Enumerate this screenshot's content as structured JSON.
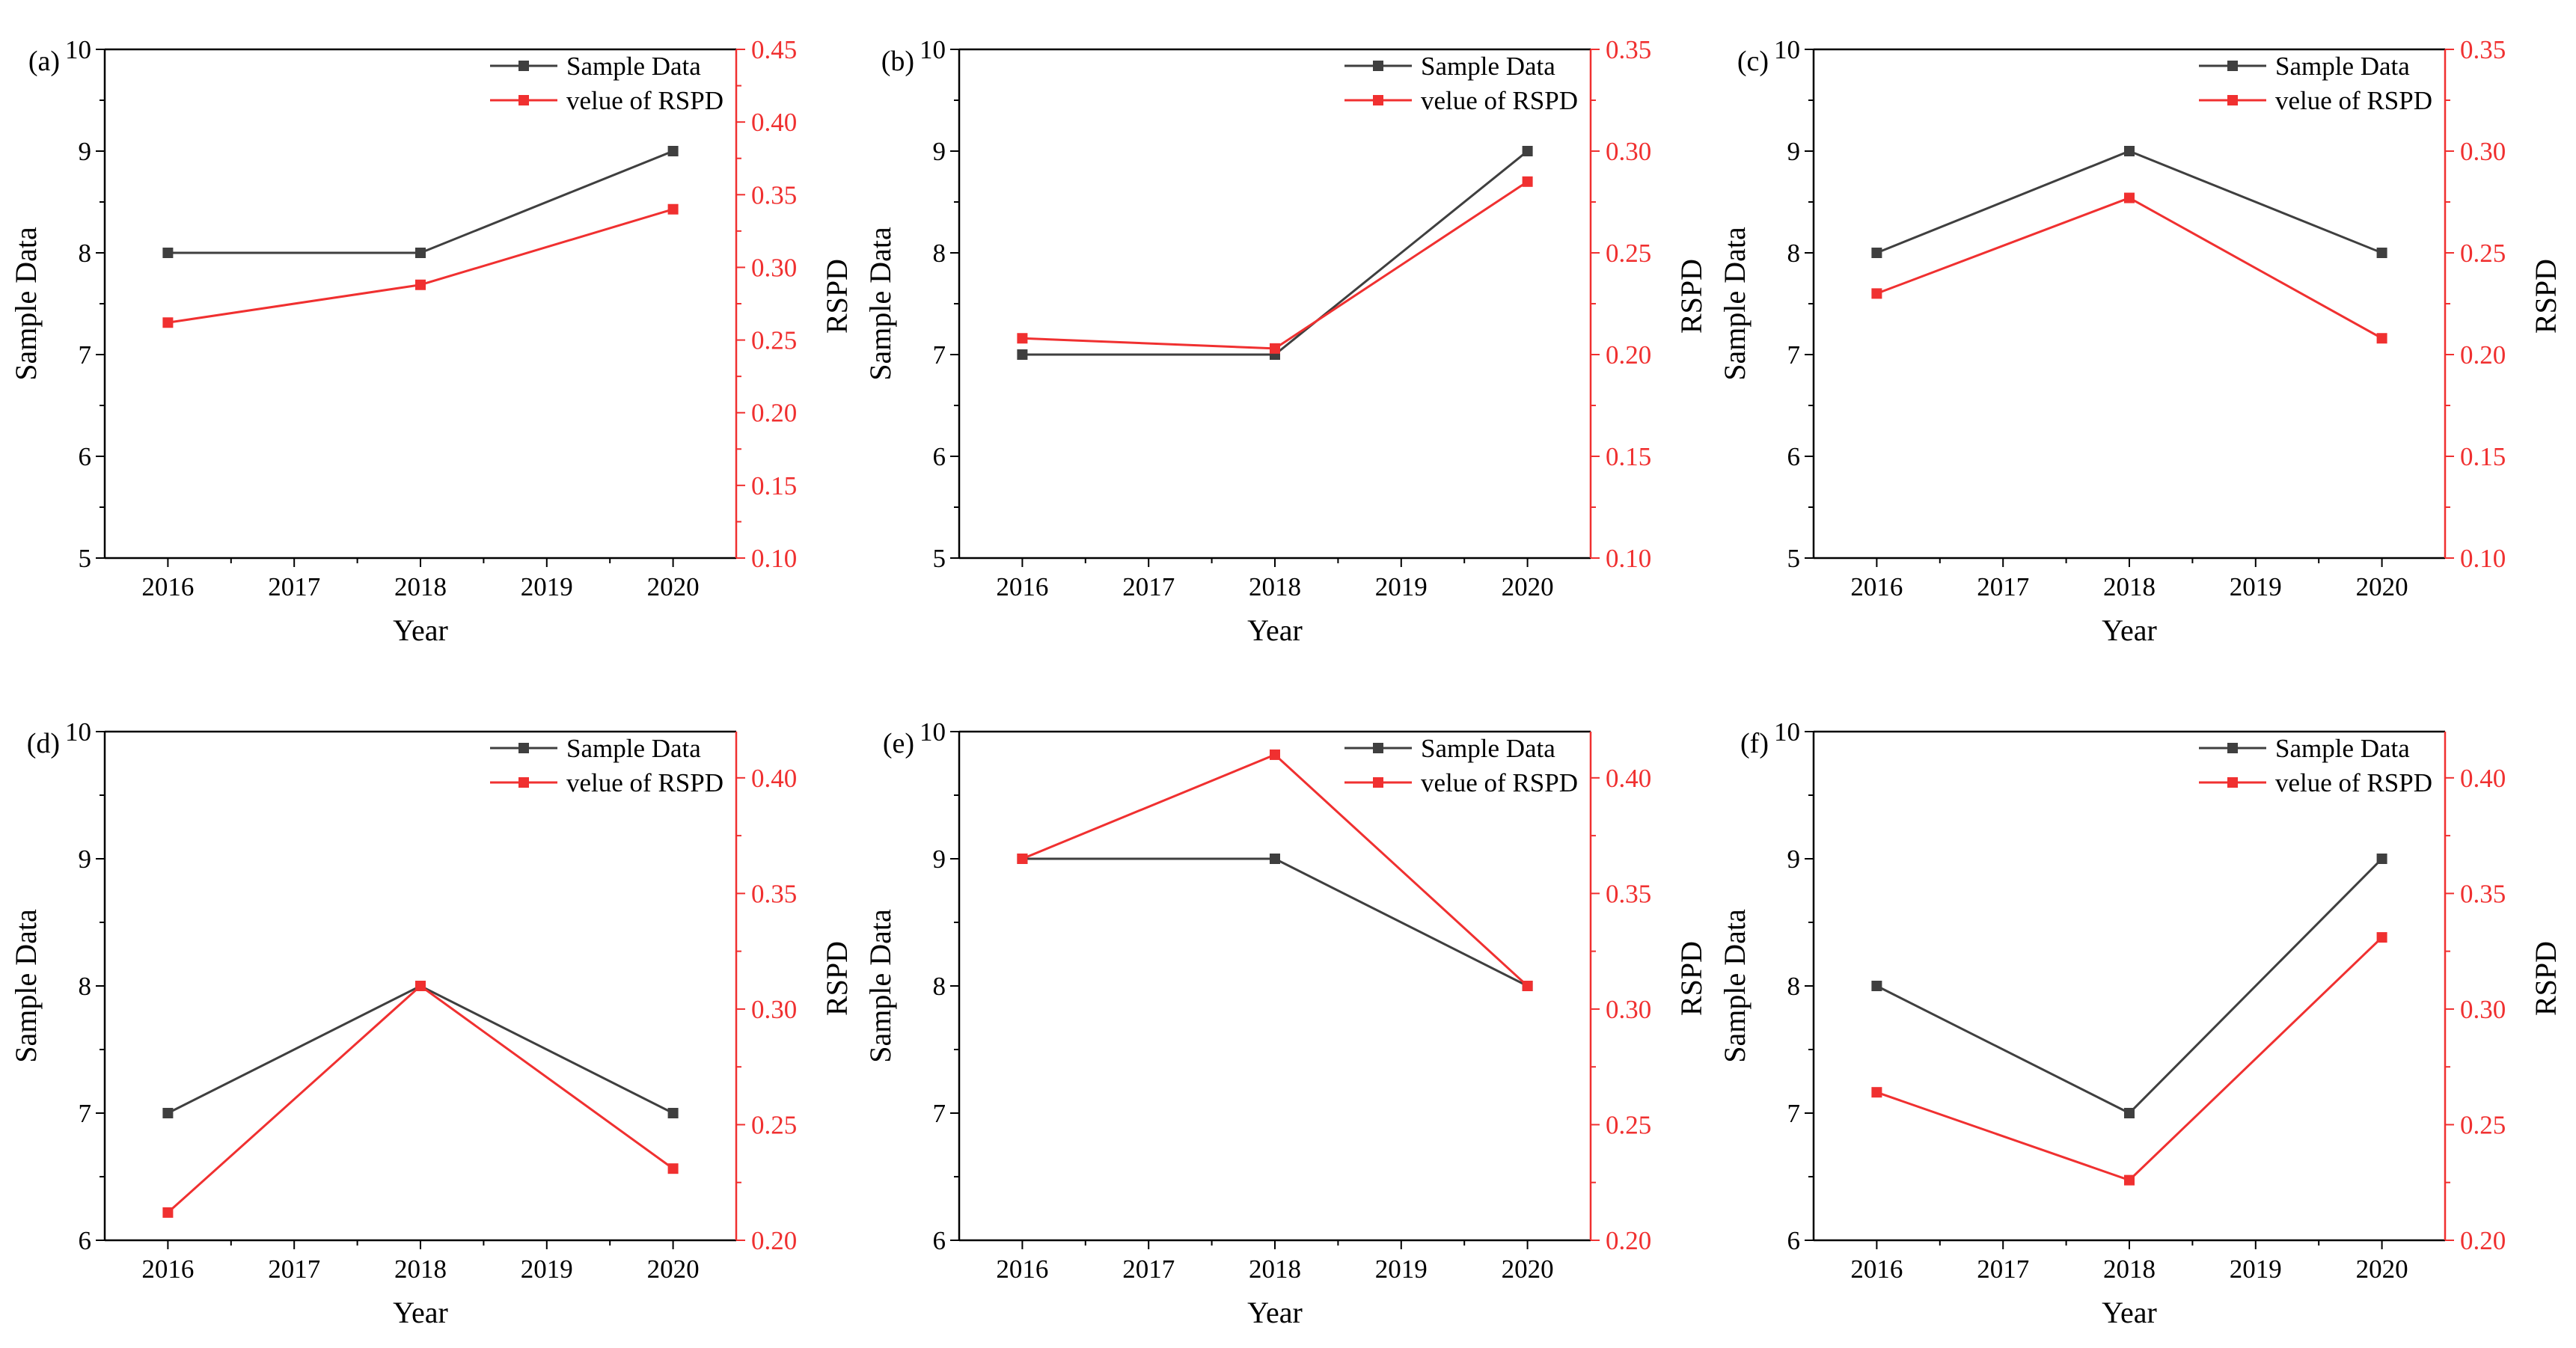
{
  "figure": {
    "panel_count": 6
  },
  "chart_data": [
    {
      "type": "line",
      "panel_label": "(a)",
      "xlabel": "Year",
      "ylabel": "Sample Data",
      "y2label": "RSPD",
      "x_ticks": [
        "2016",
        "2017",
        "2018",
        "2019",
        "2020"
      ],
      "xlim": [
        2015.5,
        2020.5
      ],
      "ylim": [
        5,
        10
      ],
      "y_ticks": [
        "5",
        "6",
        "7",
        "8",
        "9",
        "10"
      ],
      "y2lim": [
        0.1,
        0.45
      ],
      "y2_ticks": [
        "0.10",
        "0.15",
        "0.20",
        "0.25",
        "0.30",
        "0.35",
        "0.40",
        "0.45"
      ],
      "series": [
        {
          "name": "Sample Data",
          "axis": "left",
          "color": "#3f3f3f",
          "x": [
            2016,
            2018,
            2020
          ],
          "values": [
            8,
            8,
            9
          ]
        },
        {
          "name": "velue of RSPD",
          "axis": "right",
          "color": "#f03030",
          "x": [
            2016,
            2018,
            2020
          ],
          "values": [
            0.262,
            0.288,
            0.34
          ]
        }
      ],
      "legend_position": "top-right"
    },
    {
      "type": "line",
      "panel_label": "(b)",
      "xlabel": "Year",
      "ylabel": "Sample Data",
      "y2label": "RSPD",
      "x_ticks": [
        "2016",
        "2017",
        "2018",
        "2019",
        "2020"
      ],
      "xlim": [
        2015.5,
        2020.5
      ],
      "ylim": [
        5,
        10
      ],
      "y_ticks": [
        "5",
        "6",
        "7",
        "8",
        "9",
        "10"
      ],
      "y2lim": [
        0.1,
        0.35
      ],
      "y2_ticks": [
        "0.10",
        "0.15",
        "0.20",
        "0.25",
        "0.30",
        "0.35"
      ],
      "series": [
        {
          "name": "Sample Data",
          "axis": "left",
          "color": "#3f3f3f",
          "x": [
            2016,
            2018,
            2020
          ],
          "values": [
            7,
            7,
            9
          ]
        },
        {
          "name": "velue of RSPD",
          "axis": "right",
          "color": "#f03030",
          "x": [
            2016,
            2018,
            2020
          ],
          "values": [
            0.208,
            0.203,
            0.285
          ]
        }
      ],
      "legend_position": "top-right"
    },
    {
      "type": "line",
      "panel_label": "(c)",
      "xlabel": "Year",
      "ylabel": "Sample Data",
      "y2label": "RSPD",
      "x_ticks": [
        "2016",
        "2017",
        "2018",
        "2019",
        "2020"
      ],
      "xlim": [
        2015.5,
        2020.5
      ],
      "ylim": [
        5,
        10
      ],
      "y_ticks": [
        "5",
        "6",
        "7",
        "8",
        "9",
        "10"
      ],
      "y2lim": [
        0.1,
        0.35
      ],
      "y2_ticks": [
        "0.10",
        "0.15",
        "0.20",
        "0.25",
        "0.30",
        "0.35"
      ],
      "series": [
        {
          "name": "Sample Data",
          "axis": "left",
          "color": "#3f3f3f",
          "x": [
            2016,
            2018,
            2020
          ],
          "values": [
            8,
            9,
            8
          ]
        },
        {
          "name": "velue of RSPD",
          "axis": "right",
          "color": "#f03030",
          "x": [
            2016,
            2018,
            2020
          ],
          "values": [
            0.23,
            0.277,
            0.208
          ]
        }
      ],
      "legend_position": "top-right"
    },
    {
      "type": "line",
      "panel_label": "(d)",
      "xlabel": "Year",
      "ylabel": "Sample Data",
      "y2label": "RSPD",
      "x_ticks": [
        "2016",
        "2017",
        "2018",
        "2019",
        "2020"
      ],
      "xlim": [
        2015.5,
        2020.5
      ],
      "ylim": [
        6,
        10
      ],
      "y_ticks": [
        "6",
        "7",
        "8",
        "9",
        "10"
      ],
      "y2lim": [
        0.2,
        0.42
      ],
      "y2_ticks": [
        "0.20",
        "0.25",
        "0.30",
        "0.35",
        "0.40"
      ],
      "series": [
        {
          "name": "Sample Data",
          "axis": "left",
          "color": "#3f3f3f",
          "x": [
            2016,
            2018,
            2020
          ],
          "values": [
            7,
            8,
            7
          ]
        },
        {
          "name": "velue of RSPD",
          "axis": "right",
          "color": "#f03030",
          "x": [
            2016,
            2018,
            2020
          ],
          "values": [
            0.212,
            0.31,
            0.231
          ]
        }
      ],
      "legend_position": "top-right"
    },
    {
      "type": "line",
      "panel_label": "(e)",
      "xlabel": "Year",
      "ylabel": "Sample Data",
      "y2label": "RSPD",
      "x_ticks": [
        "2016",
        "2017",
        "2018",
        "2019",
        "2020"
      ],
      "xlim": [
        2015.5,
        2020.5
      ],
      "ylim": [
        6,
        10
      ],
      "y_ticks": [
        "6",
        "7",
        "8",
        "9",
        "10"
      ],
      "y2lim": [
        0.2,
        0.42
      ],
      "y2_ticks": [
        "0.20",
        "0.25",
        "0.30",
        "0.35",
        "0.40"
      ],
      "series": [
        {
          "name": "Sample Data",
          "axis": "left",
          "color": "#3f3f3f",
          "x": [
            2016,
            2018,
            2020
          ],
          "values": [
            9,
            9,
            8
          ]
        },
        {
          "name": "velue of RSPD",
          "axis": "right",
          "color": "#f03030",
          "x": [
            2016,
            2018,
            2020
          ],
          "values": [
            0.365,
            0.41,
            0.31
          ]
        }
      ],
      "legend_position": "top-right"
    },
    {
      "type": "line",
      "panel_label": "(f)",
      "xlabel": "Year",
      "ylabel": "Sample Data",
      "y2label": "RSPD",
      "x_ticks": [
        "2016",
        "2017",
        "2018",
        "2019",
        "2020"
      ],
      "xlim": [
        2015.5,
        2020.5
      ],
      "ylim": [
        6,
        10
      ],
      "y_ticks": [
        "6",
        "7",
        "8",
        "9",
        "10"
      ],
      "y2lim": [
        0.2,
        0.42
      ],
      "y2_ticks": [
        "0.20",
        "0.25",
        "0.30",
        "0.35",
        "0.40"
      ],
      "series": [
        {
          "name": "Sample Data",
          "axis": "left",
          "color": "#3f3f3f",
          "x": [
            2016,
            2018,
            2020
          ],
          "values": [
            8,
            7,
            9
          ]
        },
        {
          "name": "velue of RSPD",
          "axis": "right",
          "color": "#f03030",
          "x": [
            2016,
            2018,
            2020
          ],
          "values": [
            0.264,
            0.226,
            0.331
          ]
        }
      ],
      "legend_position": "top-right"
    }
  ]
}
